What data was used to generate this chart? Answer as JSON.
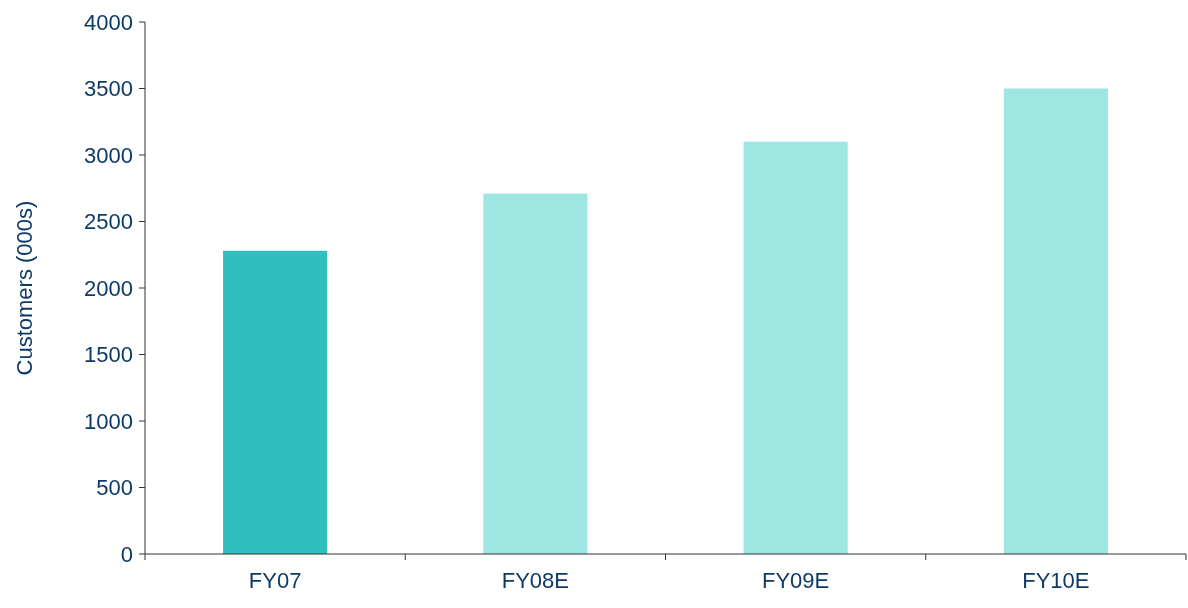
{
  "chart_data": {
    "type": "bar",
    "ylabel": "Customers (000s)",
    "categories": [
      "FY07",
      "FY08E",
      "FY09E",
      "FY10E"
    ],
    "values": [
      2280,
      2710,
      3100,
      3500
    ],
    "colors": [
      "#2fbfbf",
      "#9ee6e2",
      "#9ee6e2",
      "#9ee6e2"
    ],
    "ylim": [
      0,
      4000
    ],
    "yticks": [
      0,
      500,
      1000,
      1500,
      2000,
      2500,
      3000,
      3500,
      4000
    ],
    "grid": false
  }
}
